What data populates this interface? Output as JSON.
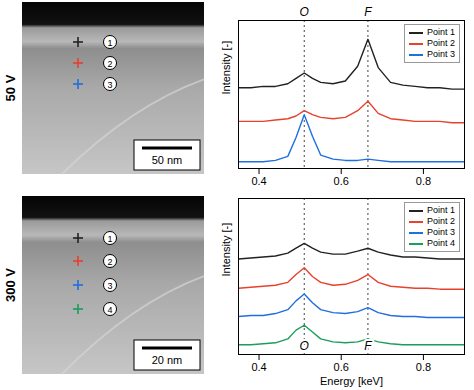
{
  "panels": [
    {
      "label": "50 V",
      "scale_bar": "50 nm",
      "points": [
        "1",
        "2",
        "3"
      ]
    },
    {
      "label": "300 V",
      "scale_bar": "20 nm",
      "points": [
        "1",
        "2",
        "3",
        "4"
      ]
    }
  ],
  "chart_data": [
    {
      "type": "line",
      "y_label": "Intensity [-]",
      "x": [
        0.35,
        0.38,
        0.41,
        0.44,
        0.47,
        0.49,
        0.51,
        0.53,
        0.55,
        0.58,
        0.61,
        0.64,
        0.665,
        0.69,
        0.72,
        0.75,
        0.78,
        0.81,
        0.84,
        0.87,
        0.9
      ],
      "series": [
        {
          "name": "Point 1",
          "color": "#222222",
          "values": [
            6.0,
            6.0,
            6.1,
            6.1,
            6.3,
            6.7,
            7.1,
            6.7,
            6.4,
            6.3,
            6.5,
            7.6,
            9.6,
            7.5,
            6.4,
            6.2,
            6.1,
            6.0,
            6.0,
            5.9,
            5.9
          ]
        },
        {
          "name": "Point 2",
          "color": "#e8412c",
          "values": [
            3.5,
            3.5,
            3.5,
            3.6,
            3.7,
            3.9,
            4.3,
            4.0,
            3.8,
            3.7,
            3.8,
            4.3,
            5.0,
            4.1,
            3.7,
            3.6,
            3.5,
            3.5,
            3.5,
            3.4,
            3.4
          ]
        },
        {
          "name": "Point 3",
          "color": "#1f6fe0",
          "values": [
            0.5,
            0.5,
            0.5,
            0.6,
            0.9,
            2.3,
            4.0,
            2.4,
            1.0,
            0.7,
            0.6,
            0.6,
            0.7,
            0.6,
            0.5,
            0.5,
            0.5,
            0.5,
            0.5,
            0.5,
            0.5
          ]
        }
      ],
      "xlim": [
        0.35,
        0.9
      ],
      "ylim": [
        0,
        11
      ],
      "xticks": [
        0.4,
        0.6,
        0.8
      ],
      "tick_labels": "x",
      "legend": "top-right",
      "annotations": [
        {
          "text": "O",
          "x": 0.51
        },
        {
          "text": "F",
          "x": 0.665
        }
      ]
    },
    {
      "type": "line",
      "y_label": "Intensity [-]",
      "x_label": "Energy [keV]",
      "x": [
        0.35,
        0.38,
        0.41,
        0.44,
        0.47,
        0.49,
        0.51,
        0.53,
        0.55,
        0.58,
        0.61,
        0.64,
        0.665,
        0.69,
        0.72,
        0.75,
        0.78,
        0.81,
        0.84,
        0.87,
        0.9
      ],
      "series": [
        {
          "name": "Point 1",
          "color": "#222222",
          "values": [
            9.8,
            9.9,
            10.0,
            10.1,
            10.4,
            10.9,
            11.4,
            10.9,
            10.5,
            10.3,
            10.3,
            10.6,
            10.9,
            10.5,
            10.2,
            10.0,
            10.0,
            9.9,
            9.8,
            9.8,
            9.8
          ]
        },
        {
          "name": "Point 2",
          "color": "#e8412c",
          "values": [
            6.8,
            6.9,
            7.0,
            7.1,
            7.4,
            8.2,
            8.9,
            8.0,
            7.4,
            7.1,
            7.2,
            7.6,
            8.2,
            7.4,
            7.0,
            6.9,
            6.8,
            6.8,
            6.7,
            6.7,
            6.7
          ]
        },
        {
          "name": "Point 3",
          "color": "#1f6fe0",
          "values": [
            3.9,
            4.0,
            4.0,
            4.2,
            4.6,
            5.5,
            6.2,
            5.3,
            4.6,
            4.3,
            4.2,
            4.4,
            4.8,
            4.3,
            4.0,
            3.9,
            3.9,
            3.8,
            3.8,
            3.8,
            3.8
          ]
        },
        {
          "name": "Point 4",
          "color": "#1a9e5a",
          "values": [
            1.0,
            1.0,
            1.1,
            1.2,
            1.6,
            2.5,
            3.0,
            2.3,
            1.6,
            1.3,
            1.2,
            1.3,
            1.6,
            1.3,
            1.1,
            1.0,
            1.0,
            1.0,
            1.0,
            1.0,
            1.0
          ]
        }
      ],
      "xlim": [
        0.35,
        0.9
      ],
      "ylim": [
        0,
        16
      ],
      "xticks": [
        0.4,
        0.6,
        0.8
      ],
      "tick_labels": "x",
      "legend": "top-right",
      "annotations": [
        {
          "text": "O",
          "x": 0.51
        },
        {
          "text": "F",
          "x": 0.665
        }
      ]
    }
  ]
}
